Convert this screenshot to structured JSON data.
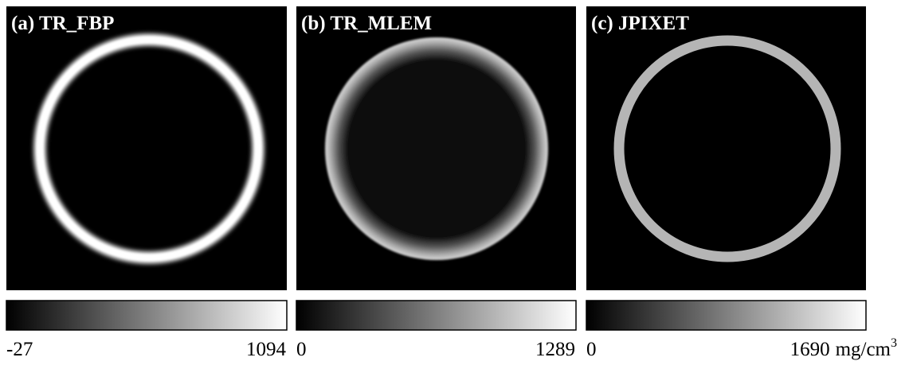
{
  "panels": [
    {
      "title": "(a) TR_FBP",
      "colorbar": {
        "min": -27,
        "max": 1094
      }
    },
    {
      "title": "(b) TR_MLEM",
      "colorbar": {
        "min": 0,
        "max": 1289
      }
    },
    {
      "title": "(c) JPIXET",
      "colorbar": {
        "min": 0,
        "max": 1690,
        "unit": "mg/cm",
        "unit_exponent": "3"
      }
    }
  ]
}
